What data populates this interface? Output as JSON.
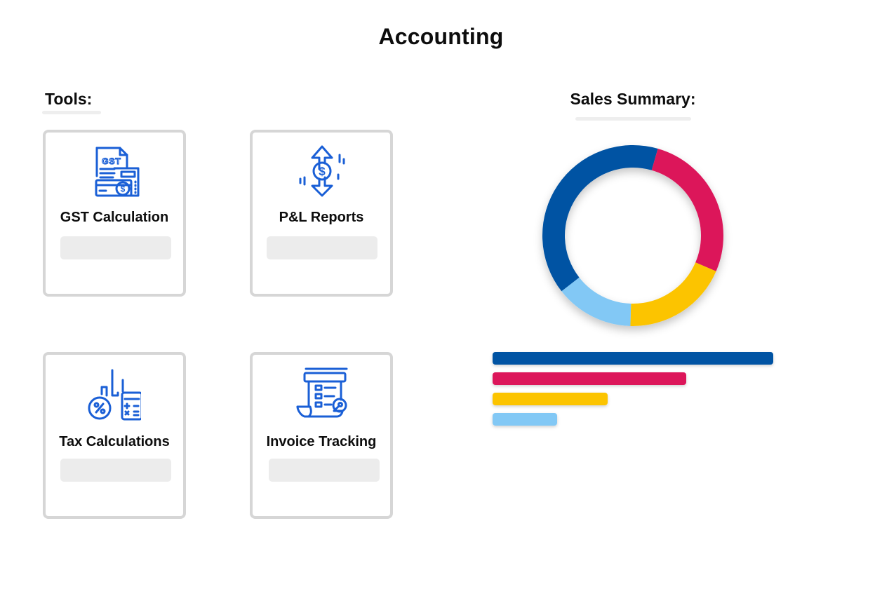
{
  "page": {
    "title": "Accounting"
  },
  "tools": {
    "heading": "Tools:",
    "items": [
      {
        "label": "GST Calculation",
        "icon": "gst-document-icon"
      },
      {
        "label": "P&L Reports",
        "icon": "dollar-arrows-icon"
      },
      {
        "label": "Tax Calculations",
        "icon": "percent-calculator-icon"
      },
      {
        "label": "Invoice Tracking",
        "icon": "invoice-search-icon"
      }
    ]
  },
  "sales_summary": {
    "heading": "Sales Summary:"
  },
  "colors": {
    "accent_icon": "#1a5fd6",
    "series": [
      "#0052a3",
      "#dc145a",
      "#fcc400",
      "#82c8f5"
    ]
  },
  "chart_data": [
    {
      "type": "pie",
      "variant": "donut",
      "values": [
        40,
        27,
        19,
        14
      ],
      "colors": [
        "#0052a3",
        "#dc145a",
        "#fcc400",
        "#82c8f5"
      ]
    },
    {
      "type": "bar",
      "orientation": "horizontal",
      "values": [
        100,
        69,
        41,
        23
      ],
      "colors": [
        "#0052a3",
        "#dc145a",
        "#fcc400",
        "#82c8f5"
      ]
    }
  ]
}
